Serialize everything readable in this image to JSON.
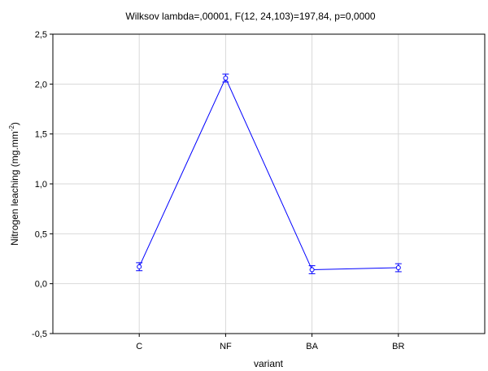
{
  "chart_data": {
    "type": "line",
    "title": "Wilksov lambda=,00001, F(12, 24,103)=197,84, p=0,0000",
    "xlabel": "variant",
    "ylabel": "Nitrogen leaching  (mg.mm",
    "ylabel_sup": "-2",
    "ylabel_end": ")",
    "categories": [
      "C",
      "NF",
      "BA",
      "BR"
    ],
    "series": [
      {
        "values": [
          0.17,
          2.06,
          0.14,
          0.16
        ],
        "error_low": [
          0.13,
          2.02,
          0.1,
          0.12
        ],
        "error_high": [
          0.21,
          2.1,
          0.18,
          0.2
        ],
        "color": "#0000ff"
      }
    ],
    "ylim": [
      -0.5,
      2.5
    ],
    "yticks": [
      -0.5,
      0,
      0.5,
      1,
      1.5,
      2,
      2.5
    ],
    "ytick_labels": [
      "-0,5",
      "0,0",
      "0,5",
      "1,0",
      "1,5",
      "2,0",
      "2,5"
    ],
    "grid": true
  }
}
